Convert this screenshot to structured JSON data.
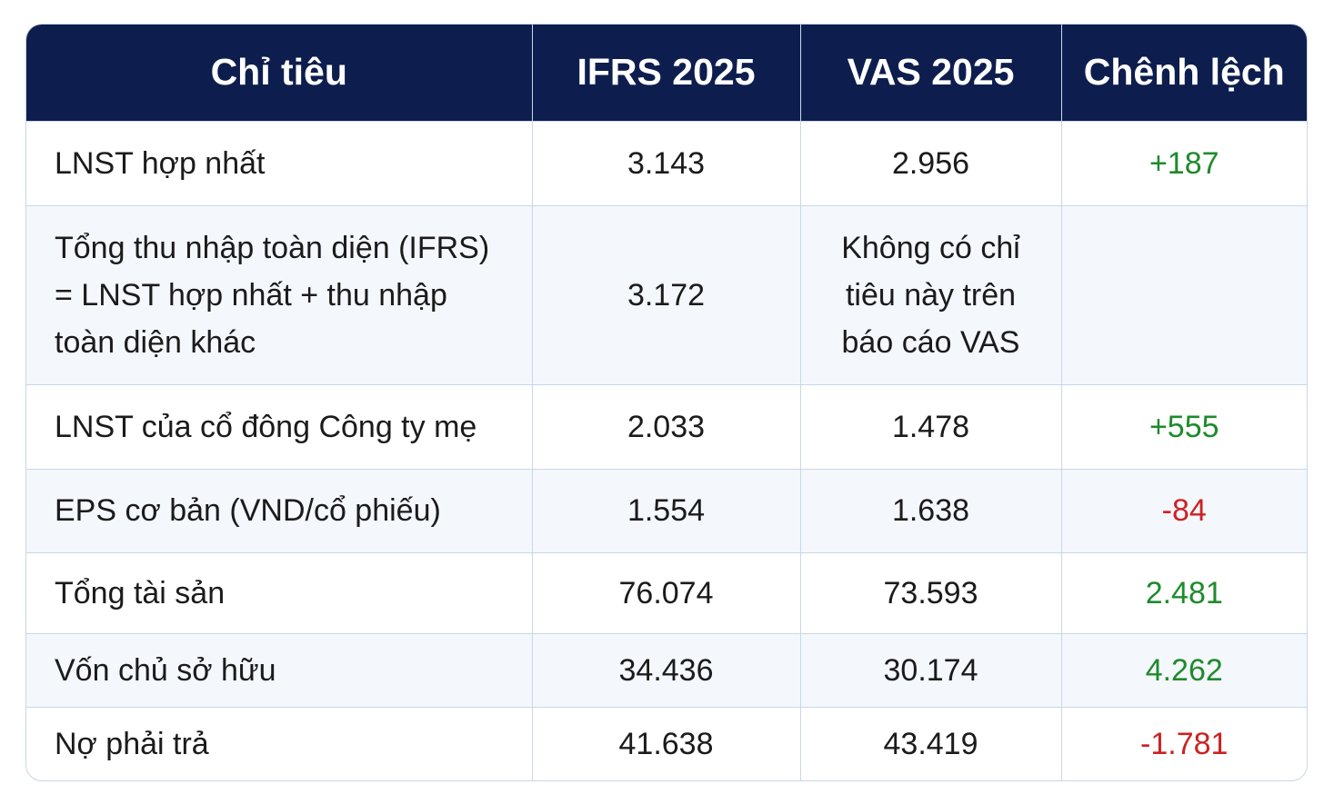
{
  "header": {
    "col1": "Chỉ tiêu",
    "col2": "IFRS 2025",
    "col3": "VAS 2025",
    "col4": "Chênh lệch"
  },
  "rows": [
    {
      "label": "LNST hợp nhất",
      "ifrs": "3.143",
      "vas": "2.956",
      "diff": "+187",
      "diff_sign": "positive"
    },
    {
      "label": "Tổng thu nhập toàn diện (IFRS) = LNST hợp nhất + thu nhập toàn diện khác",
      "ifrs": "3.172",
      "vas": "Không có chỉ tiêu này trên báo cáo VAS",
      "diff": "",
      "diff_sign": "none"
    },
    {
      "label": "LNST của cổ đông Công ty mẹ",
      "ifrs": "2.033",
      "vas": "1.478",
      "diff": "+555",
      "diff_sign": "positive"
    },
    {
      "label": "EPS cơ bản (VND/cổ phiếu)",
      "ifrs": "1.554",
      "vas": "1.638",
      "diff": "-84",
      "diff_sign": "negative"
    },
    {
      "label": "Tổng tài sản",
      "ifrs": "76.074",
      "vas": "73.593",
      "diff": "2.481",
      "diff_sign": "positive"
    },
    {
      "label": "Vốn chủ sở hữu",
      "ifrs": "34.436",
      "vas": "30.174",
      "diff": "4.262",
      "diff_sign": "positive"
    },
    {
      "label": "Nợ phải trả",
      "ifrs": "41.638",
      "vas": "43.419",
      "diff": "-1.781",
      "diff_sign": "negative"
    }
  ],
  "colors": {
    "header_bg": "#0d1e4e",
    "header_text": "#ffffff",
    "positive": "#1f8a2c",
    "negative": "#cc2222",
    "row_alt_bg": "#f4f7fc",
    "border": "#c9d6ea"
  }
}
